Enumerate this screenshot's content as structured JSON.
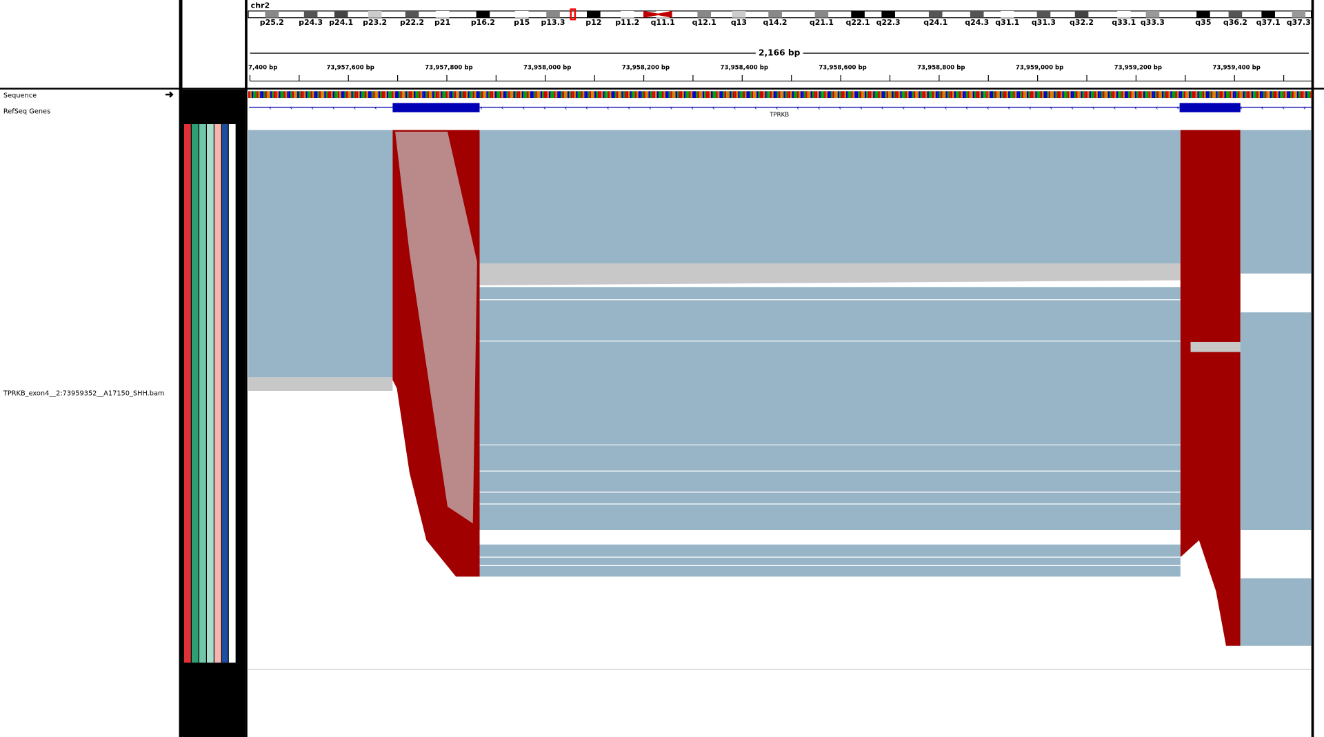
{
  "header": {
    "chromosome": "chr2",
    "span": "2,166 bp",
    "bands": [
      "p25.2",
      "p24.3",
      "p24.1",
      "p23.2",
      "p22.2",
      "p21",
      "p16.2",
      "p15",
      "p13.3",
      "p12",
      "p11.2",
      "q11.1",
      "q12.1",
      "q13",
      "q14.2",
      "q21.1",
      "q22.1",
      "q22.3",
      "q24.1",
      "q24.3",
      "q31.1",
      "q31.3",
      "q32.2",
      "q33.1",
      "q33.3",
      "q35",
      "q36.2",
      "q37.1",
      "q37.3"
    ],
    "positions": [
      "7,400 bp",
      "73,957,600 bp",
      "73,957,800 bp",
      "73,958,000 bp",
      "73,958,200 bp",
      "73,958,400 bp",
      "73,958,600 bp",
      "73,958,800 bp",
      "73,959,000 bp",
      "73,959,200 bp",
      "73,959,400 bp"
    ]
  },
  "tracks": {
    "sequence": "Sequence",
    "refseq": "RefSeq Genes",
    "gene": "TPRKB",
    "alignment": "TPRKB_exon4__2:73959352__A17150_SHH.bam"
  }
}
